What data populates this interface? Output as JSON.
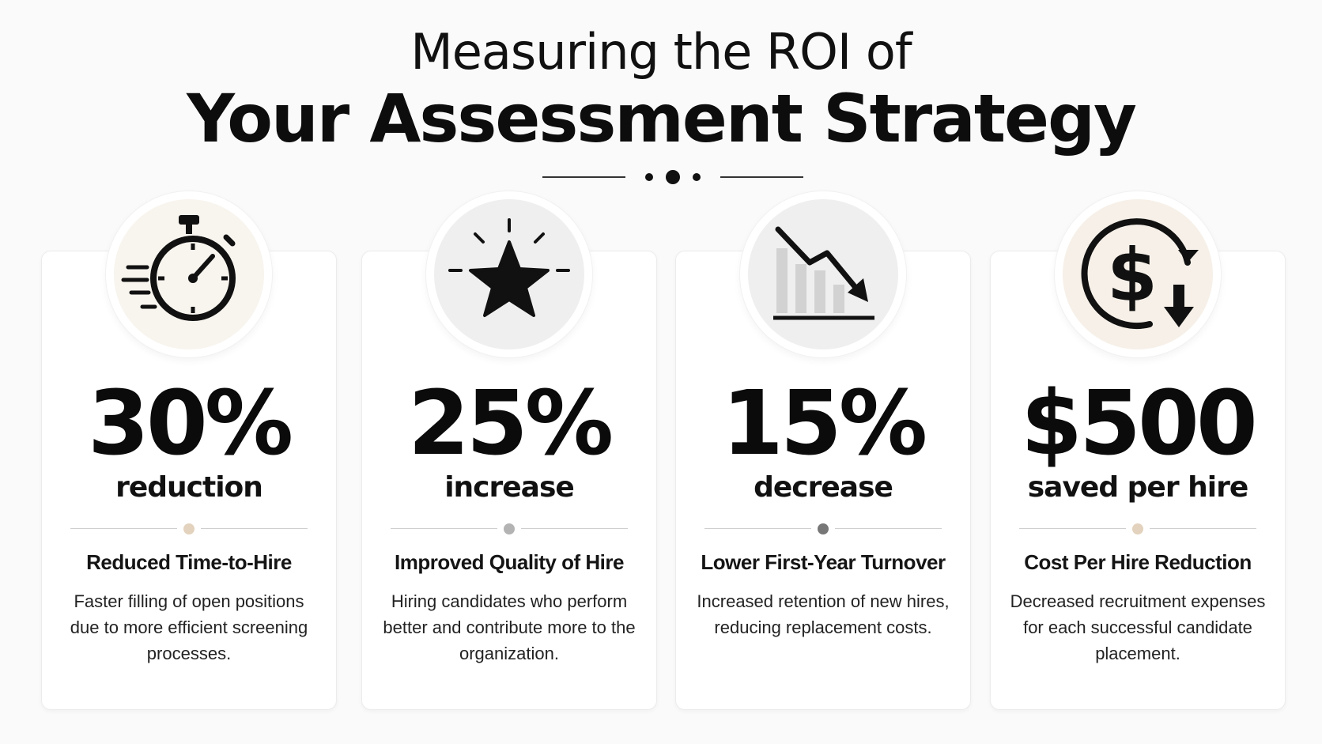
{
  "header": {
    "title_line1": "Measuring the ROI of",
    "title_line2": "Your Assessment Strategy"
  },
  "cards": [
    {
      "icon": "stopwatch-icon",
      "value": "30%",
      "unit": "reduction",
      "title": "Reduced Time-to-Hire",
      "description": "Faster filling of open positions due to more efficient screening processes.",
      "accent": "#e6d6c2",
      "circle_bg": "#f8f4ee",
      "dot_color": "#e3d2bd"
    },
    {
      "icon": "star-icon",
      "value": "25%",
      "unit": "increase",
      "title": "Improved Quality of Hire",
      "description": "Hiring candidates who perform better and contribute more to the organization.",
      "accent": "#a9a9ab",
      "circle_bg": "#efefef",
      "dot_color": "#b3b3b3"
    },
    {
      "icon": "trending-down-chart-icon",
      "value": "15%",
      "unit": "decrease",
      "title": "Lower First-Year Turnover",
      "description": "Increased retention of new hires, reducing replacement costs.",
      "accent": "#5a5a5c",
      "circle_bg": "#efefef",
      "dot_color": "#777777"
    },
    {
      "icon": "dollar-down-icon",
      "value": "$500",
      "unit": "saved per hire",
      "title": "Cost Per Hire Reduction",
      "description": "Decreased recruitment expenses for each successful candidate placement.",
      "accent": "#ead9c5",
      "circle_bg": "#f6f0e8",
      "dot_color": "#e3d2bd"
    }
  ]
}
